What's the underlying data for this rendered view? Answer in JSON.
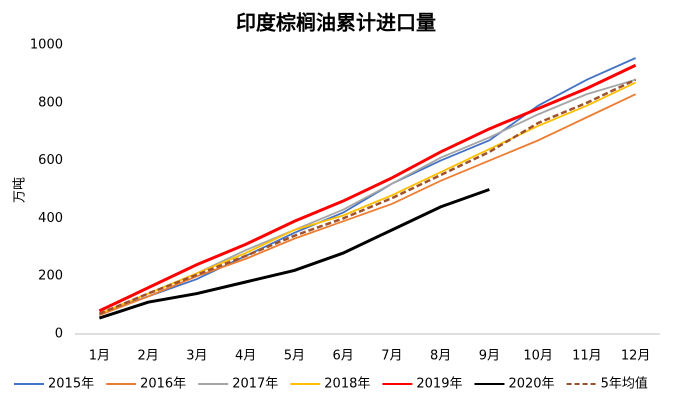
{
  "chart_data": {
    "type": "line",
    "title": "印度棕榈油累计进口量",
    "y_label": "万吨",
    "categories": [
      "1月",
      "2月",
      "3月",
      "4月",
      "5月",
      "6月",
      "7月",
      "8月",
      "9月",
      "10月",
      "11月",
      "12月"
    ],
    "ylim": [
      0,
      1000
    ],
    "yticks": [
      0,
      200,
      400,
      600,
      800,
      1000
    ],
    "grid": false,
    "legend": "bottom",
    "series": [
      {
        "name": "2015年",
        "color": "#4472c4",
        "values": [
          70,
          130,
          190,
          270,
          350,
          420,
          520,
          600,
          670,
          790,
          880,
          955
        ]
      },
      {
        "name": "2016年",
        "color": "#ed7d31",
        "values": [
          65,
          130,
          200,
          260,
          330,
          390,
          450,
          530,
          600,
          670,
          750,
          830
        ]
      },
      {
        "name": "2017年",
        "color": "#a5a5a5",
        "values": [
          70,
          140,
          210,
          290,
          360,
          430,
          520,
          610,
          680,
          760,
          830,
          880
        ]
      },
      {
        "name": "2018年",
        "color": "#ffc000",
        "values": [
          70,
          140,
          210,
          280,
          360,
          410,
          480,
          560,
          640,
          720,
          790,
          870
        ]
      },
      {
        "name": "2019年",
        "color": "#ff0000",
        "values": [
          80,
          160,
          240,
          310,
          390,
          460,
          540,
          630,
          710,
          780,
          850,
          930
        ]
      },
      {
        "name": "2020年",
        "color": "#000000",
        "values": [
          55,
          110,
          140,
          180,
          220,
          280,
          360,
          440,
          500,
          null,
          null,
          null
        ]
      },
      {
        "name": "5年均值",
        "color": "#a0522d",
        "dashed": true,
        "values": [
          70,
          140,
          205,
          270,
          340,
          400,
          470,
          550,
          630,
          730,
          800,
          880
        ]
      }
    ]
  }
}
